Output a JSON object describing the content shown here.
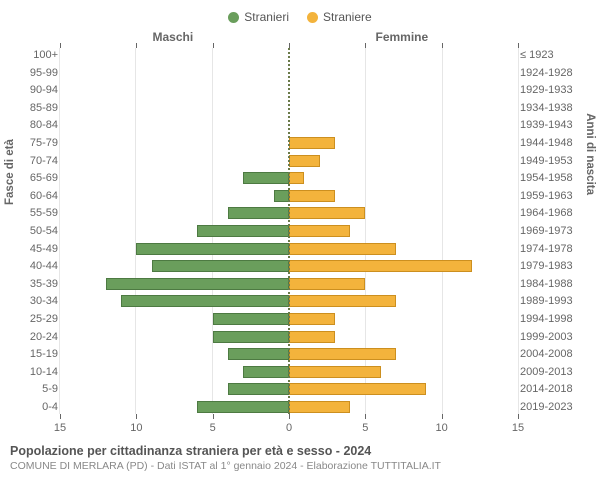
{
  "legend": [
    {
      "label": "Stranieri",
      "color": "#6a9e5c"
    },
    {
      "label": "Straniere",
      "color": "#f3b33c"
    }
  ],
  "column_headers": {
    "left": "Maschi",
    "right": "Femmine"
  },
  "axis_titles": {
    "left": "Fasce di età",
    "right": "Anni di nascita"
  },
  "pyramid": {
    "type": "population-pyramid",
    "x_max": 15,
    "x_ticks": [
      0,
      5,
      10,
      15
    ],
    "grid_color": "#e6e6e6",
    "center_line_color": "#6a7a4a",
    "male": {
      "fill": "#6a9e5c",
      "border": "#4d7a42"
    },
    "female": {
      "fill": "#f3b33c",
      "border": "#cc8f1f"
    },
    "age_labels": [
      "100+",
      "95-99",
      "90-94",
      "85-89",
      "80-84",
      "75-79",
      "70-74",
      "65-69",
      "60-64",
      "55-59",
      "50-54",
      "45-49",
      "40-44",
      "35-39",
      "30-34",
      "25-29",
      "20-24",
      "15-19",
      "10-14",
      "5-9",
      "0-4"
    ],
    "birth_labels": [
      "≤ 1923",
      "1924-1928",
      "1929-1933",
      "1934-1938",
      "1939-1943",
      "1944-1948",
      "1949-1953",
      "1954-1958",
      "1959-1963",
      "1964-1968",
      "1969-1973",
      "1974-1978",
      "1979-1983",
      "1984-1988",
      "1989-1993",
      "1994-1998",
      "1999-2003",
      "2004-2008",
      "2009-2013",
      "2014-2018",
      "2019-2023"
    ],
    "male_values": [
      0,
      0,
      0,
      0,
      0,
      0,
      0,
      3,
      1,
      4,
      6,
      10,
      9,
      12,
      11,
      5,
      5,
      4,
      3,
      4,
      6
    ],
    "female_values": [
      0,
      0,
      0,
      0,
      0,
      3,
      2,
      1,
      3,
      5,
      4,
      7,
      12,
      5,
      7,
      3,
      3,
      7,
      6,
      9,
      4
    ]
  },
  "footer": {
    "title": "Popolazione per cittadinanza straniera per età e sesso - 2024",
    "sub": "COMUNE DI MERLARA (PD) - Dati ISTAT al 1° gennaio 2024 - Elaborazione TUTTITALIA.IT"
  }
}
